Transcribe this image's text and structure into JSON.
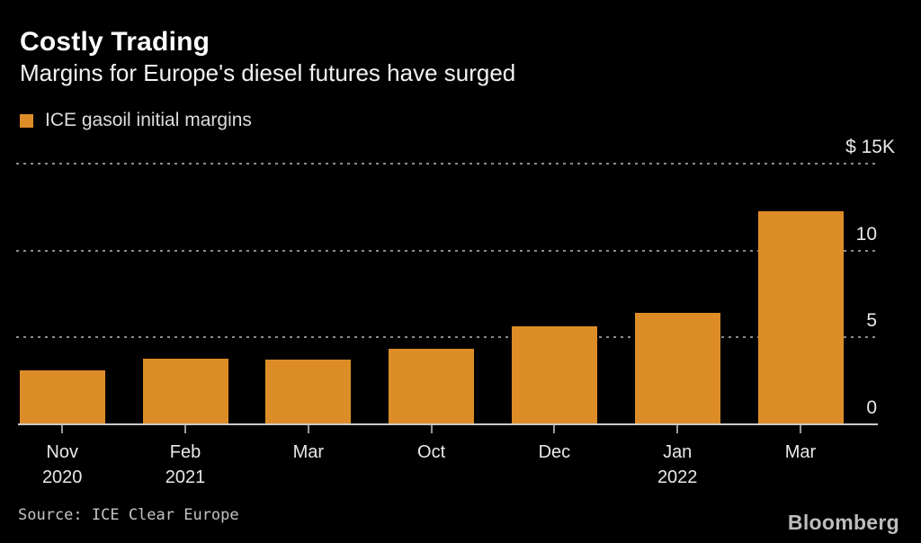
{
  "page": {
    "background": "#000000"
  },
  "header": {
    "title": "Costly Trading",
    "subtitle": "Margins for Europe's diesel futures have surged"
  },
  "legend": {
    "swatch_color": "#DD8D28",
    "label": "ICE gasoil initial margins"
  },
  "chart_data": {
    "type": "bar",
    "title": "Costly Trading",
    "subtitle": "Margins for Europe's diesel futures have surged",
    "series": [
      {
        "name": "ICE gasoil initial margins",
        "values_thousand_usd": [
          3.1,
          3.8,
          3.75,
          4.35,
          5.65,
          6.4,
          12.25
        ]
      }
    ],
    "categories": [
      "Nov 2020",
      "Feb 2021",
      "Mar",
      "Oct",
      "Dec",
      "Jan 2022",
      "Mar"
    ],
    "category_labels": [
      [
        "Nov",
        "2020"
      ],
      [
        "Feb",
        "2021"
      ],
      [
        "Mar"
      ],
      [
        "Oct"
      ],
      [
        "Dec"
      ],
      [
        "Jan",
        "2022"
      ],
      [
        "Mar"
      ]
    ],
    "unit": "thousand USD",
    "ylim": [
      0,
      15
    ],
    "y_ticks": [
      {
        "value": 15,
        "label": "$ 15K"
      },
      {
        "value": 10,
        "label": "10"
      },
      {
        "value": 5,
        "label": "5"
      },
      {
        "value": 0,
        "label": "0"
      }
    ],
    "axis_side": "right",
    "grid": "dotted-horizontal",
    "bar_color": "#DD8D28",
    "background_color": "#000000",
    "legend_position": "top-left"
  },
  "footer": {
    "source": "Source: ICE Clear Europe",
    "brand": "Bloomberg"
  }
}
